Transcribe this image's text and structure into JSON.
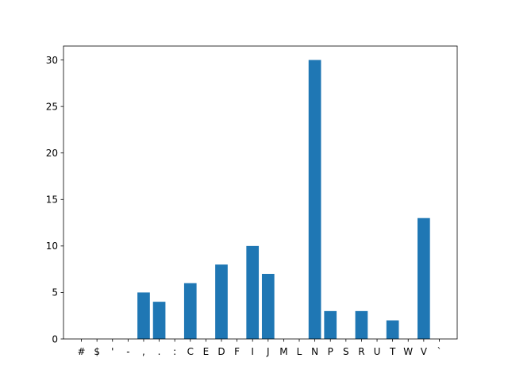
{
  "chart_data": {
    "type": "bar",
    "title": "",
    "xlabel": "",
    "ylabel": "",
    "categories": [
      "#",
      "$",
      "'",
      "-",
      ",",
      ".",
      ":",
      "C",
      "E",
      "D",
      "F",
      "I",
      "J",
      "M",
      "L",
      "N",
      "P",
      "S",
      "R",
      "U",
      "T",
      "W",
      "V",
      "`"
    ],
    "values": [
      0,
      0,
      0,
      0,
      5,
      4,
      0,
      6,
      0,
      8,
      0,
      10,
      7,
      0,
      0,
      30,
      3,
      0,
      3,
      0,
      2,
      0,
      13,
      0
    ],
    "ylim": [
      0,
      31.5
    ],
    "yticks": [
      0,
      5,
      10,
      15,
      20,
      25,
      30
    ],
    "bar_color": "#1f77b4",
    "grid": false,
    "legend": false
  }
}
